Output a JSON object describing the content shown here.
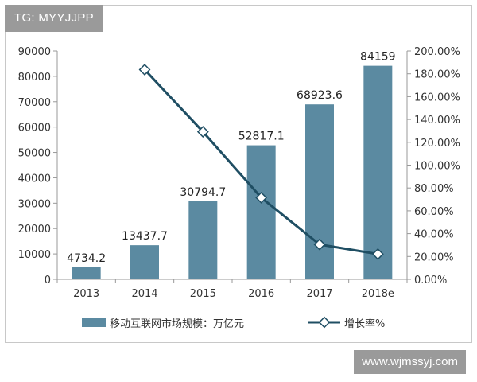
{
  "watermark_top": "TG: MYYJJPP",
  "watermark_bottom": "www.wjmssyj.com",
  "chart_data": {
    "type": "bar",
    "categories": [
      "2013",
      "2014",
      "2015",
      "2016",
      "2017",
      "2018e"
    ],
    "series": [
      {
        "name": "移动互联网市场规模：万亿元",
        "type": "bar",
        "axis": "left",
        "values": [
          4734.2,
          13437.7,
          30794.7,
          52817.1,
          68923.6,
          84159
        ],
        "data_labels": [
          "4734.2",
          "13437.7",
          "30794.7",
          "52817.1",
          "68923.6",
          "84159"
        ]
      },
      {
        "name": "增长率%",
        "type": "line",
        "axis": "right",
        "values": [
          null,
          183.6,
          129.2,
          71.5,
          30.5,
          22.1
        ]
      }
    ],
    "y_left": {
      "min": 0,
      "max": 90000,
      "ticks": [
        "0",
        "10000",
        "20000",
        "30000",
        "40000",
        "50000",
        "60000",
        "70000",
        "80000",
        "90000"
      ]
    },
    "y_right": {
      "min": 0,
      "max": 200,
      "ticks": [
        "0.00%",
        "20.00%",
        "40.00%",
        "60.00%",
        "80.00%",
        "100.00%",
        "120.00%",
        "140.00%",
        "160.00%",
        "180.00%",
        "200.00%"
      ]
    },
    "legend_position": "bottom",
    "grid": false,
    "colors": {
      "bar": "#5b8aa1",
      "line": "#1f4e63",
      "marker_fill": "#ffffff",
      "axis": "#999999"
    }
  }
}
